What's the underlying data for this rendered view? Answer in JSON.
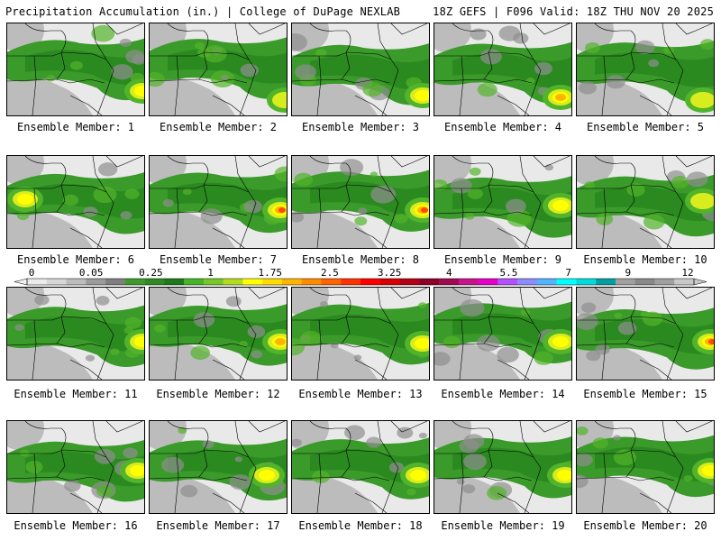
{
  "header": {
    "left": "Precipitation Accumulation (in.) | College of DuPage NEXLAB",
    "right": "18Z GEFS | F096 Valid: 18Z THU NOV 20 2025"
  },
  "members": [
    {
      "label": "Ensemble Member: 1",
      "max": 1.4,
      "core": [
        150,
        75
      ]
    },
    {
      "label": "Ensemble Member: 2",
      "max": 1.2,
      "core": [
        150,
        85
      ]
    },
    {
      "label": "Ensemble Member: 3",
      "max": 1.3,
      "core": [
        145,
        80
      ]
    },
    {
      "label": "Ensemble Member: 4",
      "max": 1.8,
      "core": [
        140,
        82
      ]
    },
    {
      "label": "Ensemble Member: 5",
      "max": 1.2,
      "core": [
        140,
        85
      ]
    },
    {
      "label": "Ensemble Member: 6",
      "max": 1.5,
      "core": [
        20,
        48
      ]
    },
    {
      "label": "Ensemble Member: 7",
      "max": 2.2,
      "core": [
        145,
        60
      ]
    },
    {
      "label": "Ensemble Member: 8",
      "max": 3.3,
      "core": [
        145,
        60
      ]
    },
    {
      "label": "Ensemble Member: 9",
      "max": 1.6,
      "core": [
        140,
        55
      ]
    },
    {
      "label": "Ensemble Member: 10",
      "max": 1.1,
      "core": [
        140,
        50
      ]
    },
    {
      "label": "Ensemble Member: 11",
      "max": 1.6,
      "core": [
        150,
        60
      ]
    },
    {
      "label": "Ensemble Member: 12",
      "max": 2.0,
      "core": [
        145,
        60
      ]
    },
    {
      "label": "Ensemble Member: 13",
      "max": 1.6,
      "core": [
        145,
        62
      ]
    },
    {
      "label": "Ensemble Member: 14",
      "max": 1.6,
      "core": [
        140,
        60
      ]
    },
    {
      "label": "Ensemble Member: 15",
      "max": 2.2,
      "core": [
        148,
        60
      ]
    },
    {
      "label": "Ensemble Member: 16",
      "max": 1.5,
      "core": [
        145,
        55
      ]
    },
    {
      "label": "Ensemble Member: 17",
      "max": 1.6,
      "core": [
        130,
        60
      ]
    },
    {
      "label": "Ensemble Member: 18",
      "max": 1.4,
      "core": [
        140,
        60
      ]
    },
    {
      "label": "Ensemble Member: 19",
      "max": 1.5,
      "core": [
        145,
        60
      ]
    },
    {
      "label": "Ensemble Member: 20",
      "max": 1.3,
      "core": [
        148,
        55
      ]
    }
  ],
  "colorbar": {
    "ticks": [
      "0",
      "0.05",
      "0.25",
      "1",
      "1.75",
      "2.5",
      "3.25",
      "4",
      "5.5",
      "7",
      "9",
      "12"
    ],
    "colors": [
      "#ebebeb",
      "#d7d7d7",
      "#bcbcbc",
      "#9b9b9b",
      "#7f7f7f",
      "#3f9a2e",
      "#2f8a25",
      "#1f7a1c",
      "#48b428",
      "#78c828",
      "#b4dc1e",
      "#ffff00",
      "#ffdc00",
      "#ffb400",
      "#ff8c00",
      "#ff6400",
      "#ff3200",
      "#ff0000",
      "#dc0000",
      "#b40014",
      "#8c0028",
      "#a00a50",
      "#c8148c",
      "#e600c8",
      "#b450ff",
      "#8c8cff",
      "#50b4ff",
      "#00ffff",
      "#00dcdc",
      "#00a0a0",
      "#a0a0a0",
      "#888888",
      "#a0a0a0",
      "#c8c8c8"
    ]
  },
  "colors": {
    "land_light": "#e9e9e9",
    "gray_mid": "#bcbcbc",
    "gray_dark": "#8f8f8f",
    "green_1": "#3a9a2a",
    "green_2": "#2b8a1f",
    "green_3": "#52b42a",
    "yellow": "#d8ec1e",
    "yellow_2": "#ffff00",
    "orange": "#ffb400",
    "red": "#ff4a00",
    "borders": "#000000"
  }
}
